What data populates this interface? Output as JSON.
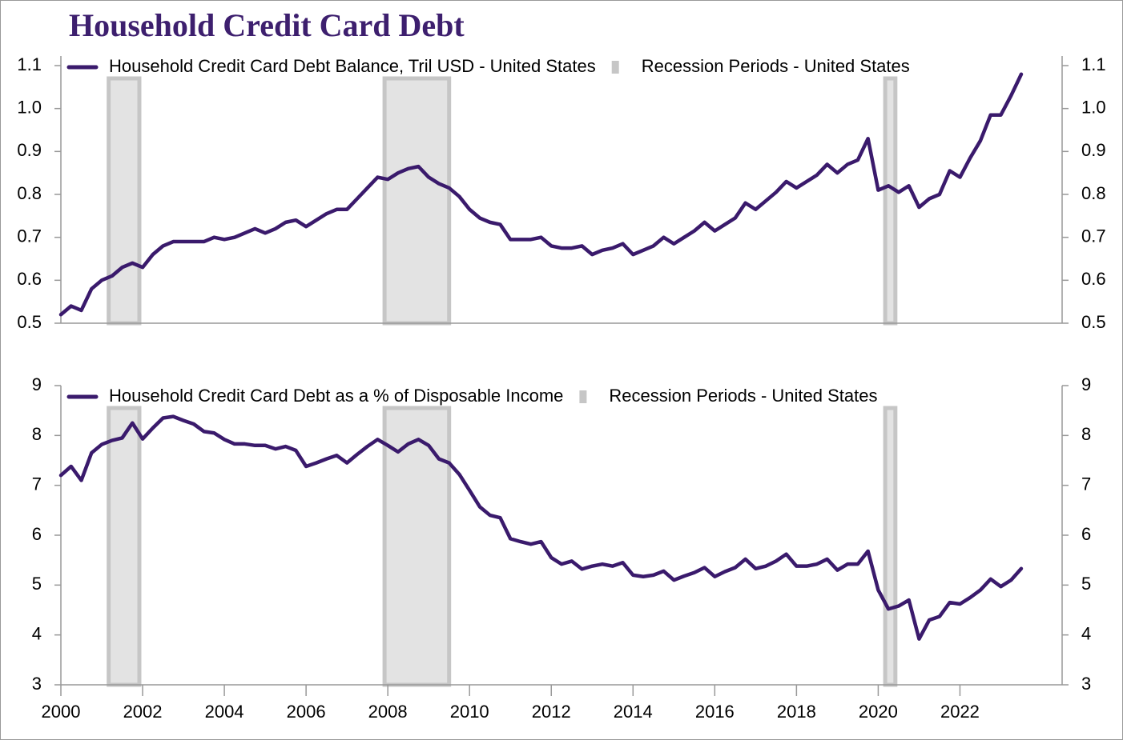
{
  "title": "Household Credit Card Debt",
  "chart_data": [
    {
      "type": "line",
      "xlim": [
        2000,
        2024.5
      ],
      "ylim": [
        0.5,
        1.1
      ],
      "yticks": [
        0.5,
        0.6,
        0.7,
        0.8,
        0.9,
        {
          "value": 1,
          "label": "1.0"
        },
        1.1
      ],
      "legend": "top-left",
      "x": [
        2000,
        2000.25,
        2000.5,
        2000.75,
        2001,
        2001.25,
        2001.5,
        2001.75,
        2002,
        2002.25,
        2002.5,
        2002.75,
        2003,
        2003.25,
        2003.5,
        2003.75,
        2004,
        2004.25,
        2004.5,
        2004.75,
        2005,
        2005.25,
        2005.5,
        2005.75,
        2006,
        2006.25,
        2006.5,
        2006.75,
        2007,
        2007.25,
        2007.5,
        2007.75,
        2008,
        2008.25,
        2008.5,
        2008.75,
        2009,
        2009.25,
        2009.5,
        2009.75,
        2010,
        2010.25,
        2010.5,
        2010.75,
        2011,
        2011.25,
        2011.5,
        2011.75,
        2012,
        2012.25,
        2012.5,
        2012.75,
        2013,
        2013.25,
        2013.5,
        2013.75,
        2014,
        2014.25,
        2014.5,
        2014.75,
        2015,
        2015.25,
        2015.5,
        2015.75,
        2016,
        2016.25,
        2016.5,
        2016.75,
        2017,
        2017.25,
        2017.5,
        2017.75,
        2018,
        2018.25,
        2018.5,
        2018.75,
        2019,
        2019.25,
        2019.5,
        2019.75,
        2020,
        2020.25,
        2020.5,
        2020.75,
        2021,
        2021.25,
        2021.5,
        2021.75,
        2022,
        2022.25,
        2022.5,
        2022.75,
        2023,
        2023.25,
        2023.5
      ],
      "series": [
        {
          "name": "Household Credit Card Debt Balance, Tril USD - United States",
          "color": "#3a1a6c",
          "values": [
            0.52,
            0.54,
            0.53,
            0.58,
            0.6,
            0.61,
            0.63,
            0.64,
            0.63,
            0.66,
            0.68,
            0.69,
            0.69,
            0.69,
            0.69,
            0.7,
            0.695,
            0.7,
            0.71,
            0.72,
            0.71,
            0.72,
            0.735,
            0.74,
            0.725,
            0.74,
            0.755,
            0.765,
            0.765,
            0.79,
            0.815,
            0.84,
            0.835,
            0.85,
            0.86,
            0.865,
            0.84,
            0.825,
            0.815,
            0.795,
            0.765,
            0.745,
            0.735,
            0.73,
            0.695,
            0.695,
            0.695,
            0.7,
            0.68,
            0.675,
            0.675,
            0.68,
            0.66,
            0.67,
            0.675,
            0.685,
            0.66,
            0.67,
            0.68,
            0.7,
            0.685,
            0.7,
            0.715,
            0.735,
            0.715,
            0.73,
            0.745,
            0.78,
            0.765,
            0.785,
            0.805,
            0.83,
            0.815,
            0.83,
            0.845,
            0.87,
            0.85,
            0.87,
            0.88,
            0.93,
            0.81,
            0.82,
            0.805,
            0.82,
            0.77,
            0.79,
            0.8,
            0.855,
            0.84,
            0.885,
            0.925,
            0.985,
            0.985,
            1.03,
            1.08
          ]
        }
      ],
      "recessions": {
        "name": "Recession Periods - United States",
        "color": "#e3e3e3",
        "edge_color": "#c6c6c6",
        "periods": [
          [
            2001.17,
            2001.92
          ],
          [
            2007.92,
            2009.5
          ],
          [
            2020.17,
            2020.42
          ]
        ]
      }
    },
    {
      "type": "line",
      "xlim": [
        2000,
        2024.5
      ],
      "xticks": [
        2000,
        2002,
        2004,
        2006,
        2008,
        2010,
        2012,
        2014,
        2016,
        2018,
        2020,
        2022
      ],
      "ylim": [
        3,
        9
      ],
      "yticks": [
        3,
        4,
        5,
        6,
        7,
        8,
        9
      ],
      "legend": "top-left",
      "x": [
        2000,
        2000.25,
        2000.5,
        2000.75,
        2001,
        2001.25,
        2001.5,
        2001.75,
        2002,
        2002.25,
        2002.5,
        2002.75,
        2003,
        2003.25,
        2003.5,
        2003.75,
        2004,
        2004.25,
        2004.5,
        2004.75,
        2005,
        2005.25,
        2005.5,
        2005.75,
        2006,
        2006.25,
        2006.5,
        2006.75,
        2007,
        2007.25,
        2007.5,
        2007.75,
        2008,
        2008.25,
        2008.5,
        2008.75,
        2009,
        2009.25,
        2009.5,
        2009.75,
        2010,
        2010.25,
        2010.5,
        2010.75,
        2011,
        2011.25,
        2011.5,
        2011.75,
        2012,
        2012.25,
        2012.5,
        2012.75,
        2013,
        2013.25,
        2013.5,
        2013.75,
        2014,
        2014.25,
        2014.5,
        2014.75,
        2015,
        2015.25,
        2015.5,
        2015.75,
        2016,
        2016.25,
        2016.5,
        2016.75,
        2017,
        2017.25,
        2017.5,
        2017.75,
        2018,
        2018.25,
        2018.5,
        2018.75,
        2019,
        2019.25,
        2019.5,
        2019.75,
        2020,
        2020.25,
        2020.5,
        2020.75,
        2021,
        2021.25,
        2021.5,
        2021.75,
        2022,
        2022.25,
        2022.5,
        2022.75,
        2023,
        2023.25,
        2023.5
      ],
      "series": [
        {
          "name": "Household Credit Card Debt as a % of Disposable Income",
          "color": "#3a1a6c",
          "values": [
            7.2,
            7.38,
            7.1,
            7.65,
            7.82,
            7.9,
            7.95,
            8.25,
            7.93,
            8.15,
            8.35,
            8.38,
            8.3,
            8.23,
            8.08,
            8.05,
            7.92,
            7.83,
            7.83,
            7.8,
            7.8,
            7.73,
            7.78,
            7.7,
            7.38,
            7.45,
            7.53,
            7.6,
            7.45,
            7.62,
            7.78,
            7.92,
            7.8,
            7.67,
            7.83,
            7.92,
            7.8,
            7.53,
            7.45,
            7.22,
            6.9,
            6.57,
            6.4,
            6.35,
            5.93,
            5.87,
            5.82,
            5.87,
            5.55,
            5.42,
            5.48,
            5.32,
            5.38,
            5.42,
            5.38,
            5.45,
            5.2,
            5.17,
            5.2,
            5.28,
            5.1,
            5.18,
            5.25,
            5.35,
            5.17,
            5.27,
            5.35,
            5.52,
            5.33,
            5.38,
            5.48,
            5.62,
            5.38,
            5.38,
            5.42,
            5.52,
            5.3,
            5.42,
            5.42,
            5.68,
            4.9,
            4.52,
            4.58,
            4.7,
            3.92,
            4.3,
            4.37,
            4.65,
            4.62,
            4.75,
            4.9,
            5.12,
            4.97,
            5.1,
            5.33
          ]
        }
      ],
      "recessions": {
        "name": "Recession Periods - United States",
        "color": "#e3e3e3",
        "edge_color": "#c6c6c6",
        "periods": [
          [
            2001.17,
            2001.92
          ],
          [
            2007.92,
            2009.5
          ],
          [
            2020.17,
            2020.42
          ]
        ]
      }
    }
  ]
}
